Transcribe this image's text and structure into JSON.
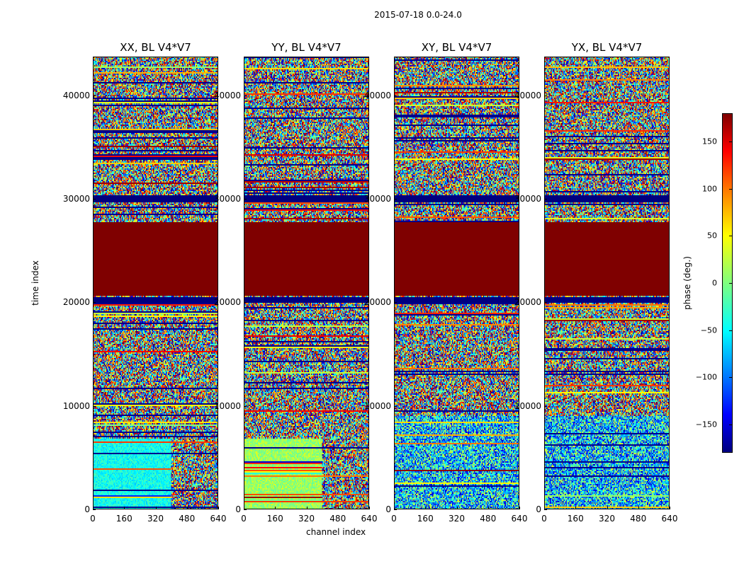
{
  "suptitle": "2015-07-18 0.0-24.0",
  "chart_data": [
    {
      "type": "heatmap",
      "title": "XX, BL V4*V7",
      "xlabel": "",
      "ylabel": "time index",
      "xlim": [
        0,
        640
      ],
      "ylim": [
        0,
        43750
      ],
      "xticks": [
        "0",
        "160",
        "320",
        "480",
        "640"
      ],
      "yticks": [
        "0",
        "10000",
        "20000",
        "30000",
        "40000"
      ],
      "low_band_smooth": true,
      "low_band_color": "cyan-green"
    },
    {
      "type": "heatmap",
      "title": "YY, BL V4*V7",
      "xlabel": "channel index",
      "ylabel": "",
      "xlim": [
        0,
        640
      ],
      "ylim": [
        0,
        43750
      ],
      "xticks": [
        "0",
        "160",
        "320",
        "480",
        "640"
      ],
      "yticks": [
        "0",
        "10000",
        "20000",
        "30000",
        "40000"
      ],
      "low_band_smooth": true,
      "low_band_color": "green-yellow"
    },
    {
      "type": "heatmap",
      "title": "XY, BL V4*V7",
      "xlabel": "",
      "ylabel": "",
      "xlim": [
        0,
        640
      ],
      "ylim": [
        0,
        43750
      ],
      "xticks": [
        "0",
        "160",
        "320",
        "480",
        "640"
      ],
      "yticks": [
        "0",
        "10000",
        "20000",
        "30000",
        "40000"
      ],
      "low_band_smooth": false
    },
    {
      "type": "heatmap",
      "title": "YX, BL V4*V7",
      "xlabel": "",
      "ylabel": "",
      "xlim": [
        0,
        640
      ],
      "ylim": [
        0,
        43750
      ],
      "xticks": [
        "0",
        "160",
        "320",
        "480",
        "640"
      ],
      "yticks": [
        "0",
        "10000",
        "20000",
        "30000",
        "40000"
      ],
      "low_band_smooth": false
    }
  ],
  "features": {
    "constant_band": {
      "from": 20600,
      "to": 27700,
      "phase": 180
    },
    "dark_bands": [
      {
        "from": 20000,
        "to": 20500,
        "phase": -180
      },
      {
        "from": 29700,
        "to": 30400,
        "phase": -180
      }
    ],
    "smooth_low_region": {
      "from": 0,
      "to": 6800,
      "channel_to": 400
    }
  },
  "colorbar": {
    "label": "phase (deg.)",
    "range": [
      -180,
      180
    ],
    "ticks": [
      "150",
      "100",
      "50",
      "0",
      "−50",
      "−100",
      "−150"
    ],
    "tick_values": [
      150,
      100,
      50,
      0,
      -50,
      -100,
      -150
    ],
    "colormap": "jet"
  }
}
